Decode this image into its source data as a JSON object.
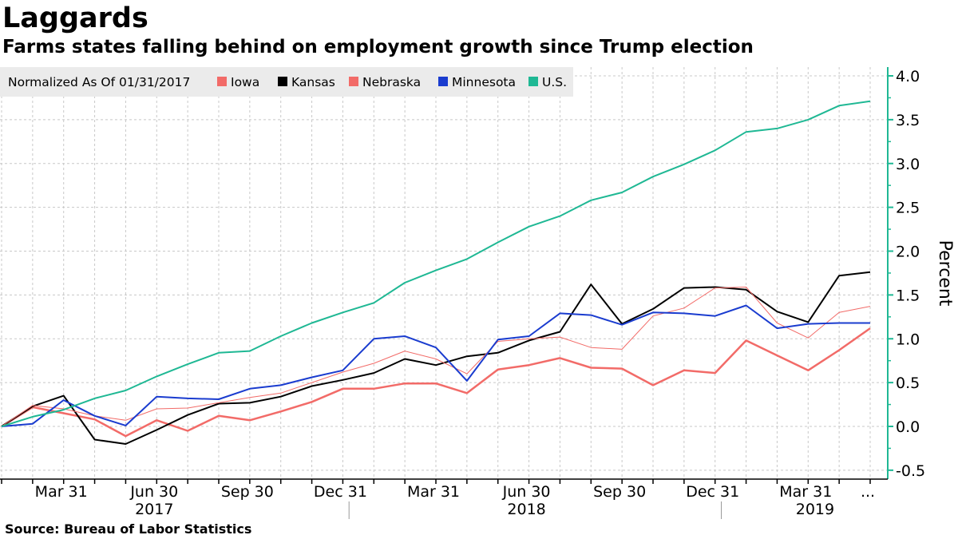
{
  "header": {
    "title": "Laggards",
    "subtitle": "Farms states falling behind on employment growth since Trump election"
  },
  "footer": {
    "source": "Source:  Bureau of Labor Statistics"
  },
  "chart_data": {
    "type": "line",
    "title": "Laggards",
    "subtitle": "Farms states falling behind on employment growth since Trump election",
    "ylabel": "Percent",
    "xlabel": "",
    "legend_title": "Normalized As Of 01/31/2017",
    "legend_position": "top-left",
    "y_axis_side": "right",
    "ylim": [
      -0.6,
      4.1
    ],
    "yticks": [
      -0.5,
      0.0,
      0.5,
      1.0,
      1.5,
      2.0,
      2.5,
      3.0,
      3.5,
      4.0
    ],
    "ytick_labels": [
      "-0.5",
      "0.0",
      "0.5",
      "1.0",
      "1.5",
      "2.0",
      "2.5",
      "3.0",
      "3.5",
      "4.0"
    ],
    "grid": true,
    "x": [
      "2017-01-31",
      "2017-02-28",
      "2017-03-31",
      "2017-04-30",
      "2017-05-31",
      "2017-06-30",
      "2017-07-31",
      "2017-08-31",
      "2017-09-30",
      "2017-10-31",
      "2017-11-30",
      "2017-12-31",
      "2018-01-31",
      "2018-02-28",
      "2018-03-31",
      "2018-04-30",
      "2018-05-31",
      "2018-06-30",
      "2018-07-31",
      "2018-08-31",
      "2018-09-30",
      "2018-10-31",
      "2018-11-30",
      "2018-12-31",
      "2019-01-31",
      "2019-02-28",
      "2019-03-31",
      "2019-04-30",
      "2019-05-31"
    ],
    "x_ticks": [
      {
        "index": 2,
        "label": "Mar 31"
      },
      {
        "index": 5,
        "label": "Jun 30"
      },
      {
        "index": 8,
        "label": "Sep 30"
      },
      {
        "index": 11,
        "label": "Dec 31"
      },
      {
        "index": 14,
        "label": "Mar 31"
      },
      {
        "index": 17,
        "label": "Jun 30"
      },
      {
        "index": 20,
        "label": "Sep 30"
      },
      {
        "index": 23,
        "label": "Dec 31"
      },
      {
        "index": 26,
        "label": "Mar 31"
      },
      {
        "index": 28,
        "label": "..."
      }
    ],
    "year_labels": [
      {
        "label": "2017",
        "center_index": 5
      },
      {
        "label": "2018",
        "center_index": 17
      },
      {
        "label": "2019",
        "center_index": 26.3
      }
    ],
    "year_separators": [
      11.2,
      23.2
    ],
    "series": [
      {
        "name": "Iowa",
        "color": "#f26b68",
        "width": 2.5,
        "values": [
          0.0,
          0.22,
          0.15,
          0.08,
          -0.11,
          0.07,
          -0.05,
          0.12,
          0.07,
          0.17,
          0.28,
          0.43,
          0.43,
          0.49,
          0.49,
          0.38,
          0.65,
          0.7,
          0.78,
          0.67,
          0.66,
          0.47,
          0.64,
          0.61,
          0.98,
          0.81,
          0.64,
          0.87,
          1.12
        ]
      },
      {
        "name": "Kansas",
        "color": "#000000",
        "width": 2,
        "values": [
          0.0,
          0.23,
          0.35,
          -0.15,
          -0.2,
          -0.04,
          0.13,
          0.26,
          0.27,
          0.34,
          0.46,
          0.53,
          0.61,
          0.77,
          0.7,
          0.8,
          0.84,
          0.98,
          1.08,
          1.62,
          1.17,
          1.34,
          1.58,
          1.59,
          1.56,
          1.31,
          1.19,
          1.72,
          1.76
        ]
      },
      {
        "name": "Nebraska",
        "color": "#f26b68",
        "width": 1,
        "values": [
          0.0,
          0.24,
          0.2,
          0.12,
          0.07,
          0.2,
          0.21,
          0.27,
          0.33,
          0.38,
          0.5,
          0.62,
          0.72,
          0.86,
          0.77,
          0.6,
          0.97,
          1.0,
          1.02,
          0.9,
          0.88,
          1.26,
          1.35,
          1.58,
          1.59,
          1.18,
          1.01,
          1.3,
          1.37
        ]
      },
      {
        "name": "Minnesota",
        "color": "#1a3ccf",
        "width": 2,
        "values": [
          0.0,
          0.03,
          0.3,
          0.12,
          0.01,
          0.34,
          0.32,
          0.31,
          0.43,
          0.47,
          0.56,
          0.64,
          1.0,
          1.03,
          0.9,
          0.52,
          0.99,
          1.03,
          1.29,
          1.27,
          1.16,
          1.3,
          1.29,
          1.26,
          1.38,
          1.12,
          1.17,
          1.18,
          1.18
        ]
      },
      {
        "name": "U.S.",
        "color": "#1fb894",
        "width": 2,
        "values": [
          0.0,
          0.11,
          0.19,
          0.32,
          0.41,
          0.57,
          0.71,
          0.84,
          0.86,
          1.03,
          1.18,
          1.3,
          1.41,
          1.64,
          1.78,
          1.91,
          2.1,
          2.28,
          2.4,
          2.58,
          2.67,
          2.85,
          2.99,
          3.15,
          3.36,
          3.4,
          3.5,
          3.66,
          3.71
        ]
      }
    ]
  }
}
